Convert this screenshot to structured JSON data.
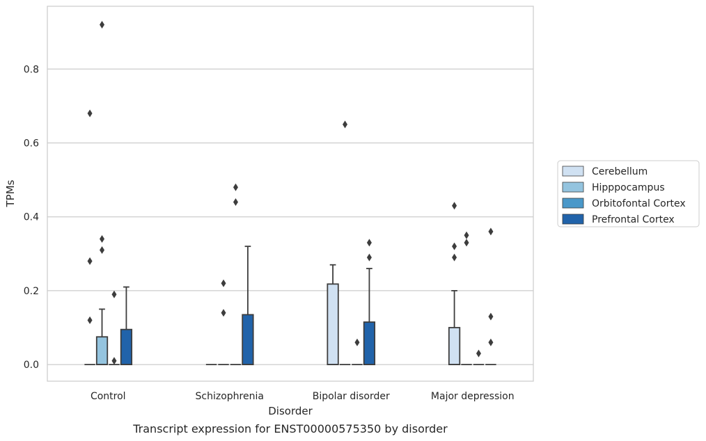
{
  "chart_data": {
    "type": "box",
    "caption": "Transcript expression for ENST00000575350 by disorder",
    "xlabel": "Disorder",
    "ylabel": "TPMs",
    "ylim": [
      -0.045,
      0.97
    ],
    "yticks": [
      "0.0",
      "0.2",
      "0.4",
      "0.6",
      "0.8"
    ],
    "grid": "horizontal",
    "legend_position": "right",
    "categories": [
      "Control",
      "Schizophrenia",
      "Bipolar disorder",
      "Major depression"
    ],
    "series": [
      {
        "name": "Cerebellum",
        "color": "#d0e1f2",
        "boxes": [
          {
            "q1": 0,
            "median": 0,
            "q3": 0,
            "whisker_low": 0,
            "whisker_high": 0,
            "outliers": [
              0.68,
              0.28,
              0.12
            ]
          },
          {
            "q1": 0,
            "median": 0,
            "q3": 0,
            "whisker_low": 0,
            "whisker_high": 0,
            "outliers": []
          },
          {
            "q1": 0,
            "median": 0,
            "q3": 0.218,
            "whisker_low": 0,
            "whisker_high": 0.27,
            "outliers": []
          },
          {
            "q1": 0,
            "median": 0,
            "q3": 0.1,
            "whisker_low": 0,
            "whisker_high": 0.2,
            "outliers": [
              0.43,
              0.32,
              0.29
            ]
          }
        ]
      },
      {
        "name": "Hipppocampus",
        "color": "#94c4df",
        "boxes": [
          {
            "q1": 0,
            "median": 0,
            "q3": 0.075,
            "whisker_low": 0,
            "whisker_high": 0.15,
            "outliers": [
              0.92,
              0.34,
              0.31
            ]
          },
          {
            "q1": 0,
            "median": 0,
            "q3": 0,
            "whisker_low": 0,
            "whisker_high": 0,
            "outliers": [
              0.22,
              0.14
            ]
          },
          {
            "q1": 0,
            "median": 0,
            "q3": 0,
            "whisker_low": 0,
            "whisker_high": 0,
            "outliers": [
              0.65
            ]
          },
          {
            "q1": 0,
            "median": 0,
            "q3": 0,
            "whisker_low": 0,
            "whisker_high": 0,
            "outliers": [
              0.35,
              0.33
            ]
          }
        ]
      },
      {
        "name": "Orbitofontal Cortex",
        "color": "#4a98c9",
        "boxes": [
          {
            "q1": 0,
            "median": 0,
            "q3": 0,
            "whisker_low": 0,
            "whisker_high": 0,
            "outliers": [
              0.19,
              0.01
            ]
          },
          {
            "q1": 0,
            "median": 0,
            "q3": 0,
            "whisker_low": 0,
            "whisker_high": 0,
            "outliers": [
              0.48,
              0.44
            ]
          },
          {
            "q1": 0,
            "median": 0,
            "q3": 0,
            "whisker_low": 0,
            "whisker_high": 0,
            "outliers": [
              0.06
            ]
          },
          {
            "q1": 0,
            "median": 0,
            "q3": 0,
            "whisker_low": 0,
            "whisker_high": 0,
            "outliers": [
              0.03
            ]
          }
        ]
      },
      {
        "name": "Prefrontal Cortex",
        "color": "#2163aa",
        "boxes": [
          {
            "q1": 0,
            "median": 0,
            "q3": 0.095,
            "whisker_low": 0,
            "whisker_high": 0.21,
            "outliers": []
          },
          {
            "q1": 0,
            "median": 0,
            "q3": 0.135,
            "whisker_low": 0,
            "whisker_high": 0.32,
            "outliers": []
          },
          {
            "q1": 0,
            "median": 0,
            "q3": 0.115,
            "whisker_low": 0,
            "whisker_high": 0.26,
            "outliers": [
              0.33,
              0.29
            ]
          },
          {
            "q1": 0,
            "median": 0,
            "q3": 0,
            "whisker_low": 0,
            "whisker_high": 0,
            "outliers": [
              0.36,
              0.13,
              0.06
            ]
          }
        ]
      }
    ]
  }
}
